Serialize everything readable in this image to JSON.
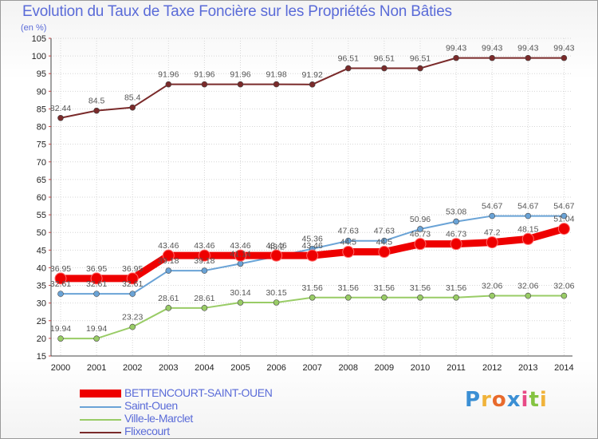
{
  "chart_data": {
    "type": "line",
    "title": "Evolution du Taux de Taxe Foncière sur les Propriétés Non Bâties",
    "subtitle": "(en %)",
    "categories": [
      "2000",
      "2001",
      "2002",
      "2003",
      "2004",
      "2005",
      "2006",
      "2007",
      "2008",
      "2009",
      "2010",
      "2011",
      "2012",
      "2013",
      "2014"
    ],
    "ylim": [
      15,
      105
    ],
    "yticks": [
      15,
      20,
      25,
      30,
      35,
      40,
      45,
      50,
      55,
      60,
      65,
      70,
      75,
      80,
      85,
      90,
      95,
      100,
      105
    ],
    "grid": true,
    "legend_position": "bottom-left",
    "series": [
      {
        "name": "BETTENCOURT-SAINT-OUEN",
        "color": "#ee0000",
        "values": [
          36.95,
          36.95,
          36.95,
          43.46,
          43.46,
          43.46,
          43.46,
          43.46,
          44.5,
          44.5,
          46.73,
          46.73,
          47.2,
          48.15,
          51.04
        ],
        "labels": [
          "36.95",
          "36.95",
          "36.95",
          "43.46",
          "43.46",
          "43.46",
          "43.46",
          "43.46",
          "44.5",
          "44.5",
          "46.73",
          "46.73",
          "47.2",
          "48.15",
          "51.04"
        ]
      },
      {
        "name": "Saint-Ouen",
        "color": "#6aa3d6",
        "values": [
          32.61,
          32.61,
          32.61,
          39.18,
          39.18,
          41.14,
          43.2,
          45.36,
          47.63,
          47.63,
          50.96,
          53.08,
          54.67,
          54.67,
          54.67
        ],
        "labels": [
          "32.61",
          "32.61",
          "32.61",
          "39.18",
          "39.18",
          "41.14",
          "43.2",
          "45.36",
          "47.63",
          "47.63",
          "50.96",
          "53.08",
          "54.67",
          "54.67",
          "54.67"
        ]
      },
      {
        "name": "Ville-le-Marclet",
        "color": "#99cc66",
        "values": [
          19.94,
          19.94,
          23.23,
          28.61,
          28.61,
          30.14,
          30.15,
          31.56,
          31.56,
          31.56,
          31.56,
          31.56,
          32.06,
          32.06,
          32.06
        ],
        "labels": [
          "19.94",
          "19.94",
          "23.23",
          "28.61",
          "28.61",
          "30.14",
          "30.15",
          "31.56",
          "31.56",
          "31.56",
          "31.56",
          "31.56",
          "32.06",
          "32.06",
          "32.06"
        ]
      },
      {
        "name": "Flixecourt",
        "color": "#7a2a2a",
        "values": [
          82.44,
          84.5,
          85.4,
          91.96,
          91.96,
          91.96,
          91.98,
          91.92,
          96.51,
          96.51,
          96.51,
          99.43,
          99.43,
          99.43,
          99.43
        ],
        "labels": [
          "82.44",
          "84.5",
          "85.4",
          "91.96",
          "91.96",
          "91.96",
          "91.98",
          "91.92",
          "96.51",
          "96.51",
          "96.51",
          "99.43",
          "99.43",
          "99.43",
          "99.43"
        ]
      }
    ]
  },
  "logo": {
    "letters": [
      "P",
      "r",
      "o",
      "x",
      "i",
      "t",
      "i"
    ],
    "colors": [
      "#3b8fd4",
      "#f0b33a",
      "#e86a2c",
      "#3b8fd4",
      "#e84a86",
      "#84c341",
      "#f0b33a"
    ]
  }
}
